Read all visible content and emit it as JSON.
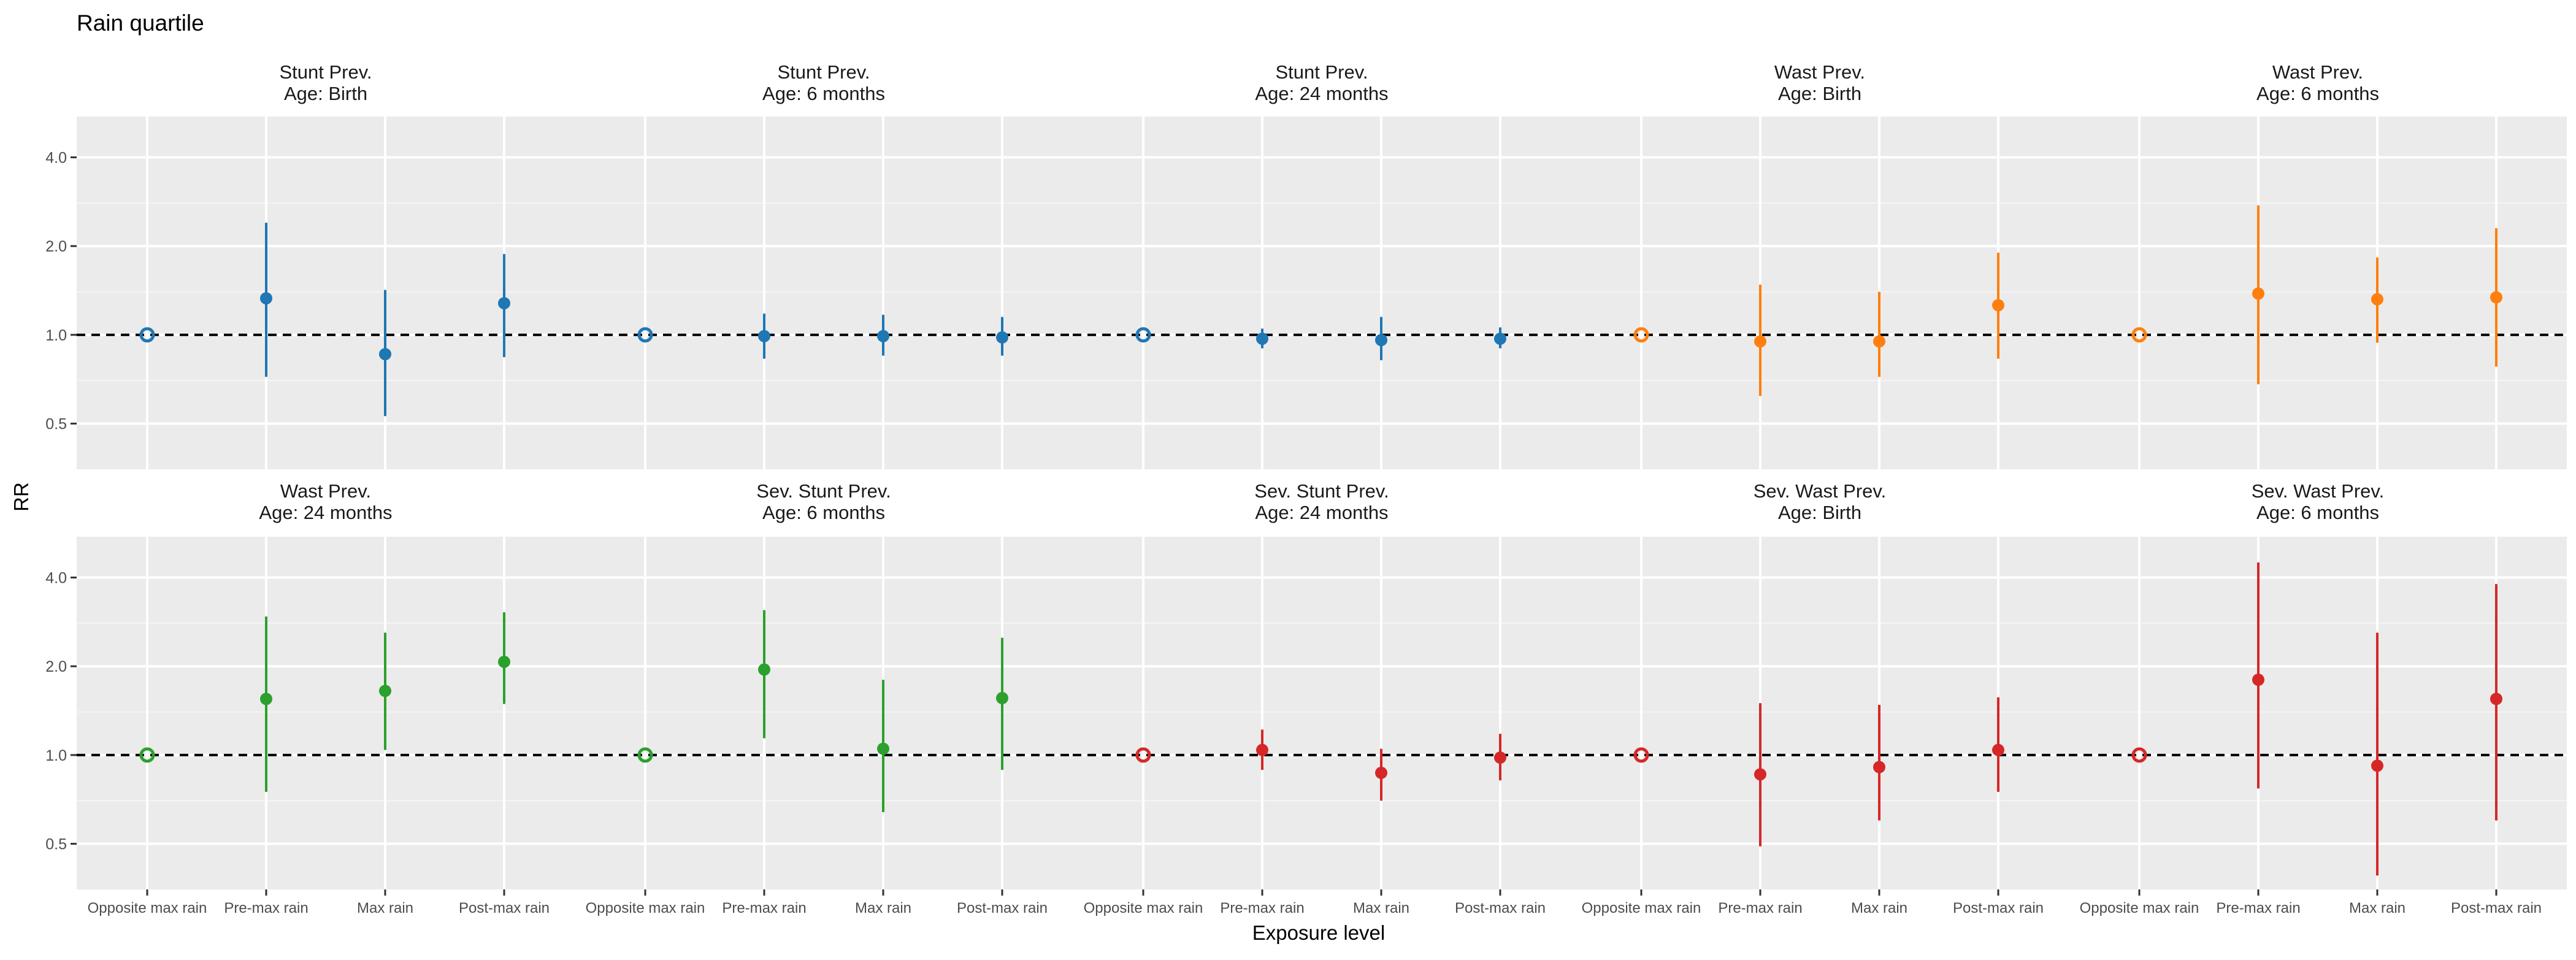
{
  "chart_data": {
    "type": "scatter",
    "title": "Rain quartile",
    "xlabel": "Exposure level",
    "ylabel": "RR",
    "y_scale": "log",
    "ylim": [
      0.35,
      5.5
    ],
    "y_ticks": [
      0.5,
      1.0,
      2.0,
      4.0
    ],
    "y_tick_labels": [
      "0.5",
      "1.0",
      "2.0",
      "4.0"
    ],
    "reference_line": 1.0,
    "grid": true,
    "legend": "none",
    "categories": [
      "Opposite max rain",
      "Pre-max rain",
      "Max rain",
      "Post-max rain"
    ],
    "panel_colors": {
      "stunt": "#1f77b4",
      "wast": "#ff7f0e",
      "wast24": "#2ca02c",
      "sevstunt": "#2ca02c",
      "sevstunt24": "#d62728",
      "sevwast": "#d62728"
    },
    "panels": [
      {
        "title": [
          "Stunt Prev.",
          "Age: Birth"
        ],
        "color": "#1f77b4",
        "points": [
          {
            "est": 1.0,
            "lo": null,
            "hi": null
          },
          {
            "est": 1.33,
            "lo": 0.72,
            "hi": 2.4
          },
          {
            "est": 0.86,
            "lo": 0.53,
            "hi": 1.42
          },
          {
            "est": 1.28,
            "lo": 0.84,
            "hi": 1.88
          }
        ]
      },
      {
        "title": [
          "Stunt Prev.",
          "Age: 6 months"
        ],
        "color": "#1f77b4",
        "points": [
          {
            "est": 1.0,
            "lo": null,
            "hi": null
          },
          {
            "est": 0.99,
            "lo": 0.83,
            "hi": 1.18
          },
          {
            "est": 0.99,
            "lo": 0.85,
            "hi": 1.17
          },
          {
            "est": 0.98,
            "lo": 0.85,
            "hi": 1.15
          }
        ]
      },
      {
        "title": [
          "Stunt Prev.",
          "Age: 24 months"
        ],
        "color": "#1f77b4",
        "points": [
          {
            "est": 1.0,
            "lo": null,
            "hi": null
          },
          {
            "est": 0.97,
            "lo": 0.9,
            "hi": 1.05
          },
          {
            "est": 0.96,
            "lo": 0.82,
            "hi": 1.15
          },
          {
            "est": 0.97,
            "lo": 0.9,
            "hi": 1.06
          }
        ]
      },
      {
        "title": [
          "Wast Prev.",
          "Age: Birth"
        ],
        "color": "#ff7f0e",
        "points": [
          {
            "est": 1.0,
            "lo": null,
            "hi": null
          },
          {
            "est": 0.95,
            "lo": 0.62,
            "hi": 1.48
          },
          {
            "est": 0.95,
            "lo": 0.72,
            "hi": 1.4
          },
          {
            "est": 1.26,
            "lo": 0.83,
            "hi": 1.9
          }
        ]
      },
      {
        "title": [
          "Wast Prev.",
          "Age: 6 months"
        ],
        "color": "#ff7f0e",
        "points": [
          {
            "est": 1.0,
            "lo": null,
            "hi": null
          },
          {
            "est": 1.38,
            "lo": 0.68,
            "hi": 2.75
          },
          {
            "est": 1.32,
            "lo": 0.94,
            "hi": 1.83
          },
          {
            "est": 1.34,
            "lo": 0.78,
            "hi": 2.3
          }
        ]
      },
      {
        "title": [
          "Wast Prev.",
          "Age: 24 months"
        ],
        "color": "#2ca02c",
        "points": [
          {
            "est": 1.0,
            "lo": null,
            "hi": null
          },
          {
            "est": 1.55,
            "lo": 0.75,
            "hi": 2.95
          },
          {
            "est": 1.65,
            "lo": 1.04,
            "hi": 2.6
          },
          {
            "est": 2.07,
            "lo": 1.49,
            "hi": 3.05
          }
        ]
      },
      {
        "title": [
          "Sev. Stunt Prev.",
          "Age: 6 months"
        ],
        "color": "#2ca02c",
        "points": [
          {
            "est": 1.0,
            "lo": null,
            "hi": null
          },
          {
            "est": 1.95,
            "lo": 1.14,
            "hi": 3.1
          },
          {
            "est": 1.05,
            "lo": 0.64,
            "hi": 1.8
          },
          {
            "est": 1.56,
            "lo": 0.89,
            "hi": 2.5
          }
        ]
      },
      {
        "title": [
          "Sev. Stunt Prev.",
          "Age: 24 months"
        ],
        "color": "#d62728",
        "points": [
          {
            "est": 1.0,
            "lo": null,
            "hi": null
          },
          {
            "est": 1.04,
            "lo": 0.89,
            "hi": 1.22
          },
          {
            "est": 0.87,
            "lo": 0.7,
            "hi": 1.05
          },
          {
            "est": 0.98,
            "lo": 0.82,
            "hi": 1.18
          }
        ]
      },
      {
        "title": [
          "Sev. Wast Prev.",
          "Age: Birth"
        ],
        "color": "#d62728",
        "points": [
          {
            "est": 1.0,
            "lo": null,
            "hi": null
          },
          {
            "est": 0.86,
            "lo": 0.49,
            "hi": 1.5
          },
          {
            "est": 0.91,
            "lo": 0.6,
            "hi": 1.48
          },
          {
            "est": 1.04,
            "lo": 0.75,
            "hi": 1.57
          }
        ]
      },
      {
        "title": [
          "Sev. Wast Prev.",
          "Age: 6 months"
        ],
        "color": "#d62728",
        "points": [
          {
            "est": 1.0,
            "lo": null,
            "hi": null
          },
          {
            "est": 1.8,
            "lo": 0.77,
            "hi": 4.5
          },
          {
            "est": 0.92,
            "lo": 0.39,
            "hi": 2.6
          },
          {
            "est": 1.55,
            "lo": 0.6,
            "hi": 3.8
          }
        ]
      }
    ]
  }
}
